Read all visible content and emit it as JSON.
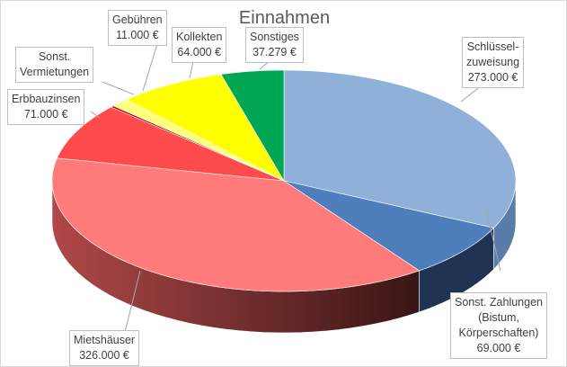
{
  "chart_data": {
    "type": "pie",
    "style": "3d",
    "title": "Einnahmen",
    "currency": "€",
    "slices": [
      {
        "name_lines": [
          "Schlüssel-",
          "zuweisung"
        ],
        "value": 273000,
        "label": "273.000 €",
        "color": "#8FB0D8",
        "side": "#5A7CA8"
      },
      {
        "name_lines": [
          "Sonst. Zahlungen",
          "(Bistum,",
          "Körperschaften)"
        ],
        "value": 69000,
        "label": "69.000 €",
        "color": "#4F7EBC",
        "side": "#1F3352"
      },
      {
        "name_lines": [
          "Mietshäuser"
        ],
        "value": 326000,
        "label": "326.000 €",
        "color": "#FF7B7B",
        "side": "#B04848"
      },
      {
        "name_lines": [
          "Erbbauzinsen"
        ],
        "value": 71000,
        "label": "71.000 €",
        "color": "#FF4B4B",
        "side": "#A82828"
      },
      {
        "name_lines": [
          "Sonst.",
          "Vermietungen"
        ],
        "value": 2000,
        "label": "",
        "color": "#C00000",
        "side": "#700000"
      },
      {
        "name_lines": [
          "Gebühren"
        ],
        "value": 11000,
        "label": "11.000 €",
        "color": "#FFFF80",
        "side": "#B0B050"
      },
      {
        "name_lines": [
          "Kollekten"
        ],
        "value": 64000,
        "label": "64.000 €",
        "color": "#FFFF00",
        "side": "#A0A000"
      },
      {
        "name_lines": [
          "Sonstiges"
        ],
        "value": 37279,
        "label": "37.279 €",
        "color": "#00A651",
        "side": "#006030"
      }
    ],
    "legend": "none",
    "start_angle": "12 o'clock",
    "direction": "clockwise"
  }
}
